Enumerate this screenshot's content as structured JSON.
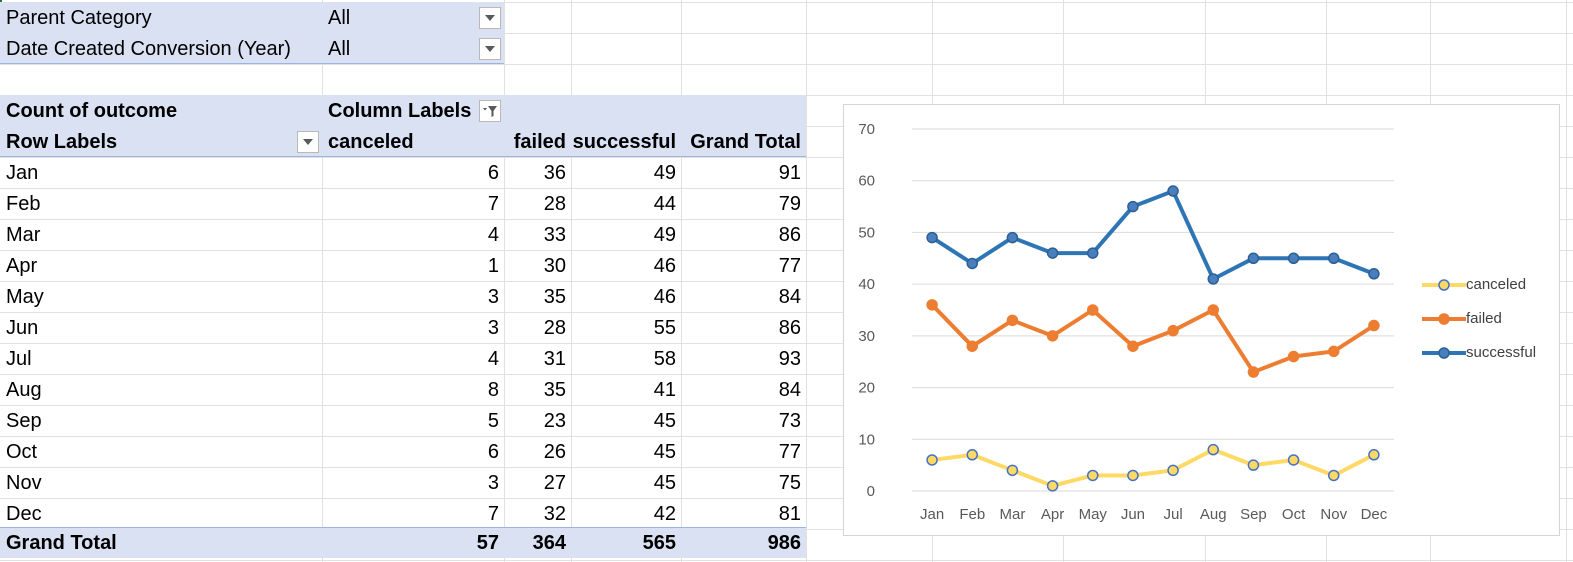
{
  "filters": [
    {
      "label": "Parent Category",
      "value": "All"
    },
    {
      "label": "Date Created Conversion (Year)",
      "value": "All"
    }
  ],
  "pivot": {
    "measure": "Count of outcome",
    "column_labels": "Column Labels",
    "row_labels": "Row Labels",
    "columns": [
      "canceled",
      "failed",
      "successful",
      "Grand Total"
    ],
    "rows": [
      {
        "label": "Jan",
        "values": [
          "6",
          "36",
          "49",
          "91"
        ]
      },
      {
        "label": "Feb",
        "values": [
          "7",
          "28",
          "44",
          "79"
        ]
      },
      {
        "label": "Mar",
        "values": [
          "4",
          "33",
          "49",
          "86"
        ]
      },
      {
        "label": "Apr",
        "values": [
          "1",
          "30",
          "46",
          "77"
        ]
      },
      {
        "label": "May",
        "values": [
          "3",
          "35",
          "46",
          "84"
        ]
      },
      {
        "label": "Jun",
        "values": [
          "3",
          "28",
          "55",
          "86"
        ]
      },
      {
        "label": "Jul",
        "values": [
          "4",
          "31",
          "58",
          "93"
        ]
      },
      {
        "label": "Aug",
        "values": [
          "8",
          "35",
          "41",
          "84"
        ]
      },
      {
        "label": "Sep",
        "values": [
          "5",
          "23",
          "45",
          "73"
        ]
      },
      {
        "label": "Oct",
        "values": [
          "6",
          "26",
          "45",
          "77"
        ]
      },
      {
        "label": "Nov",
        "values": [
          "3",
          "27",
          "45",
          "75"
        ]
      },
      {
        "label": "Dec",
        "values": [
          "7",
          "32",
          "42",
          "81"
        ]
      }
    ],
    "grand_total": {
      "label": "Grand Total",
      "values": [
        "57",
        "364",
        "565",
        "986"
      ]
    }
  },
  "icons": {
    "filter_dropdown": "chevron-down-icon",
    "column_filter": "filter-funnel-icon"
  },
  "colors": {
    "header_band": "#dae1f3",
    "canceled": "#ffd966",
    "failed": "#ed7d31",
    "successful": "#2e75b6",
    "grid": "#e1e1e1"
  },
  "chart_data": {
    "type": "line",
    "categories": [
      "Jan",
      "Feb",
      "Mar",
      "Apr",
      "May",
      "Jun",
      "Jul",
      "Aug",
      "Sep",
      "Oct",
      "Nov",
      "Dec"
    ],
    "series": [
      {
        "name": "canceled",
        "values": [
          6,
          7,
          4,
          1,
          3,
          3,
          4,
          8,
          5,
          6,
          3,
          7
        ]
      },
      {
        "name": "failed",
        "values": [
          36,
          28,
          33,
          30,
          35,
          28,
          31,
          35,
          23,
          26,
          27,
          32
        ]
      },
      {
        "name": "successful",
        "values": [
          49,
          44,
          49,
          46,
          46,
          55,
          58,
          41,
          45,
          45,
          45,
          42
        ]
      }
    ],
    "ylim": [
      0,
      70
    ],
    "yticks": [
      "0",
      "10",
      "20",
      "30",
      "40",
      "50",
      "60",
      "70"
    ],
    "grid": true,
    "legend": "right"
  }
}
